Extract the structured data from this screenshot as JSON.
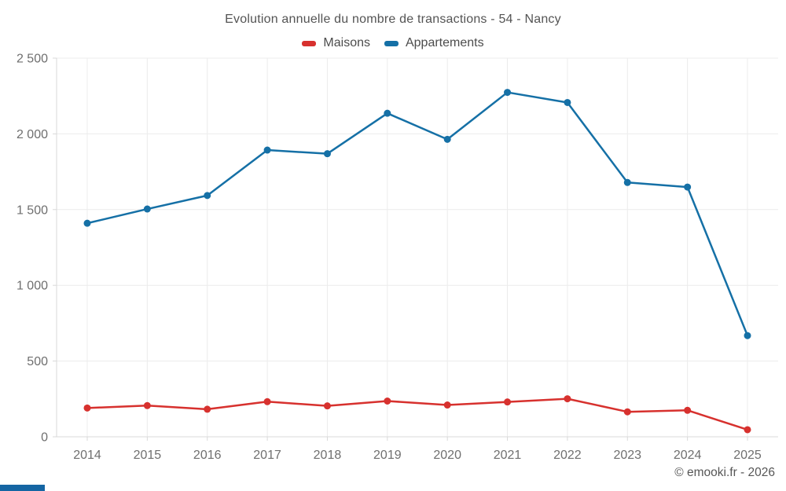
{
  "title": "Evolution annuelle du nombre de transactions - 54 - Nancy",
  "legend": [
    {
      "label": "Maisons",
      "color": "#d7312e"
    },
    {
      "label": "Appartements",
      "color": "#1570a6"
    }
  ],
  "footer": {
    "text": "© emooki.fr - 2026"
  },
  "colors": {
    "maisons": "#d7312e",
    "appartements": "#1570a6",
    "grid": "#ececec",
    "axis": "#d9d9d9",
    "tick_text": "#6f6f6f",
    "title_text": "#545454",
    "accent_bar": "#1565a3"
  },
  "chart_data": {
    "type": "line",
    "title": "Evolution annuelle du nombre de transactions - 54 - Nancy",
    "x": [
      2014,
      2015,
      2016,
      2017,
      2018,
      2019,
      2020,
      2021,
      2022,
      2023,
      2024,
      2025
    ],
    "series": [
      {
        "name": "Maisons",
        "color": "#d7312e",
        "values": [
          190,
          206,
          182,
          232,
          204,
          236,
          210,
          230,
          251,
          165,
          175,
          47
        ]
      },
      {
        "name": "Appartements",
        "color": "#1570a6",
        "values": [
          1410,
          1504,
          1593,
          1893,
          1869,
          2136,
          1964,
          2274,
          2207,
          1679,
          1649,
          668
        ]
      }
    ],
    "xlabel": "",
    "ylabel": "",
    "ylim": [
      0,
      2500
    ],
    "yticks": [
      0,
      500,
      1000,
      1500,
      2000,
      2500
    ],
    "ytick_labels": [
      "0",
      "500",
      "1 000",
      "1 500",
      "2 000",
      "2 500"
    ],
    "grid": true,
    "legend_position": "top"
  }
}
